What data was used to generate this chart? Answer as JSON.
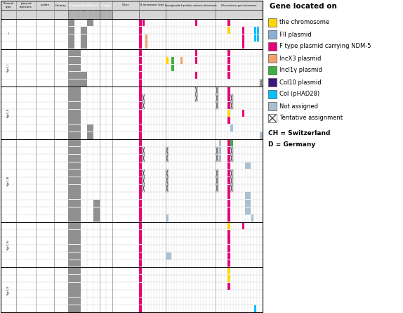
{
  "bg_color": "#FFFFFF",
  "pink": "#E8007A",
  "yellow": "#FFD700",
  "blue": "#8BAFD4",
  "orange": "#F4A068",
  "green": "#3CB043",
  "purple": "#3D1580",
  "cyan": "#00BFFF",
  "lightblue": "#AABFCF",
  "darkgray": "#909090",
  "lightgray": "#D8D8D8",
  "medgray": "#B0B0B0",
  "legend_items": [
    {
      "label": "the chromosome",
      "color": "#FFD700"
    },
    {
      "label": "FII plasmid",
      "color": "#8BAFD4"
    },
    {
      "label": "F type plasmid carrying NDM-5",
      "color": "#E8007A"
    },
    {
      "label": "IncX3 plasmid",
      "color": "#F4A068"
    },
    {
      "label": "Incl1γ plasmid",
      "color": "#3CB043"
    },
    {
      "label": "Col10 plasmid",
      "color": "#3D1580"
    },
    {
      "label": "Col (pHAD28)",
      "color": "#00BFFF"
    },
    {
      "label": "Not assigned",
      "color": "#AABFCF"
    }
  ],
  "notes": [
    "CH = Switzerland",
    "D = Germany"
  ]
}
